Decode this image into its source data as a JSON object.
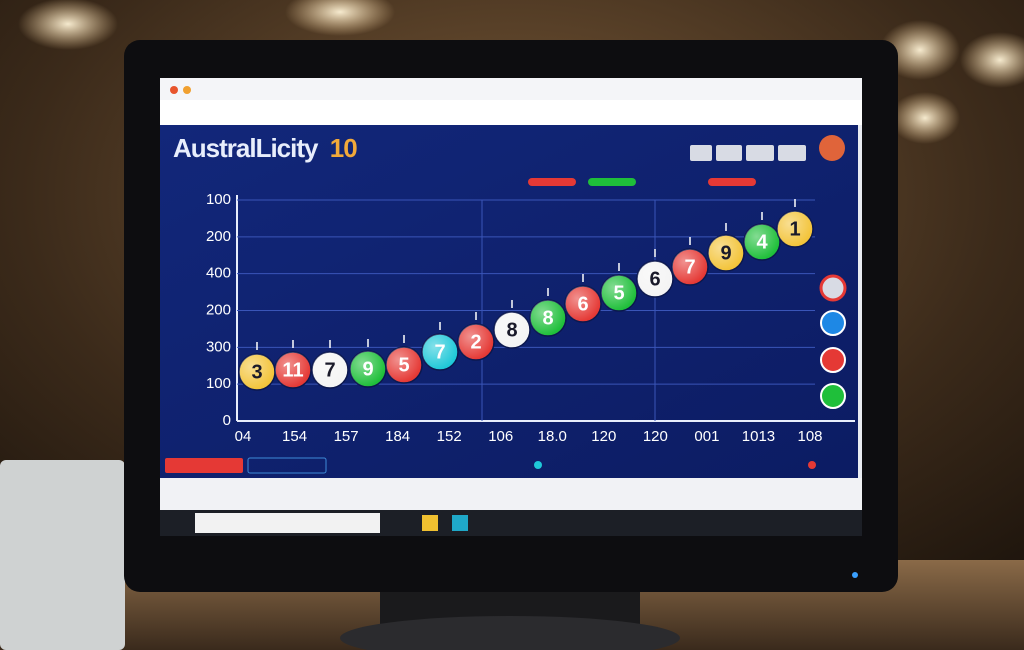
{
  "app": {
    "name": "AustralLicity",
    "number": "10"
  },
  "chart": {
    "y_labels": [
      "100",
      "200",
      "400",
      "200",
      "300",
      "100",
      "0"
    ],
    "x_labels": [
      "04",
      "154",
      "157",
      "184",
      "152",
      "106",
      "18.0",
      "120",
      "120",
      "001",
      "1013",
      "108"
    ],
    "balls": [
      {
        "label": "3",
        "color": "#f3c43a"
      },
      {
        "label": "11",
        "color": "#e53935"
      },
      {
        "label": "7",
        "color": "#f4f4f4"
      },
      {
        "label": "9",
        "color": "#1fbf3a"
      },
      {
        "label": "5",
        "color": "#e53935"
      },
      {
        "label": "7",
        "color": "#1fc8d8"
      },
      {
        "label": "2",
        "color": "#e53935"
      },
      {
        "label": "8",
        "color": "#f4f4f4"
      },
      {
        "label": "8",
        "color": "#1fbf3a"
      },
      {
        "label": "6",
        "color": "#e53935"
      },
      {
        "label": "5",
        "color": "#1fbf3a"
      },
      {
        "label": "6",
        "color": "#f4f4f4"
      },
      {
        "label": "7",
        "color": "#e53935"
      },
      {
        "label": "9",
        "color": "#f3c43a"
      },
      {
        "label": "4",
        "color": "#1fbf3a"
      },
      {
        "label": "1",
        "color": "#f3c43a"
      }
    ]
  }
}
